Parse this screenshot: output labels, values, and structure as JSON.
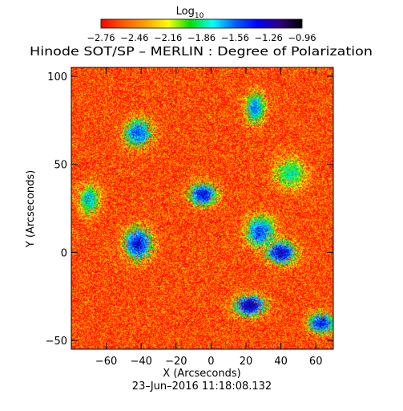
{
  "chart_data": {
    "type": "heatmap",
    "title": "Hinode SOT/SP – MERLIN : Degree of Polarization",
    "xlabel": "X (Arcseconds)",
    "ylabel": "Y (Arcseconds)",
    "timestamp": "23–Jun–2016 11:18:08.132",
    "xlim": [
      -80,
      70
    ],
    "ylim": [
      -55,
      105
    ],
    "xticks": [
      -60,
      -40,
      -20,
      0,
      20,
      40,
      60
    ],
    "yticks": [
      -50,
      0,
      50,
      100
    ],
    "xtick_labels": [
      "−60",
      "−40",
      "−20",
      "0",
      "20",
      "40",
      "60"
    ],
    "ytick_labels": [
      "−50",
      "0",
      "50",
      "100"
    ],
    "grid": false,
    "colorbar": {
      "title": "Log",
      "title_subscript": "10",
      "range": [
        -2.76,
        -0.96
      ],
      "ticks": [
        -2.76,
        -2.46,
        -2.16,
        -1.86,
        -1.56,
        -1.26,
        -0.96
      ],
      "tick_labels": [
        "−2.76",
        "−2.46",
        "−2.16",
        "−1.86",
        "−1.56",
        "−1.26",
        "−0.96"
      ],
      "colors": [
        "#ff0000",
        "#ff5a00",
        "#ffa000",
        "#ffff00",
        "#00e000",
        "#00ffff",
        "#0060ff",
        "#0000ff",
        "#300080",
        "#000000"
      ]
    },
    "background_level": -2.6,
    "regions": [
      {
        "name": "ring-patch",
        "x": -5,
        "y": 33,
        "level": -1.35
      },
      {
        "name": "left-cluster",
        "x": -42,
        "y": 5,
        "level": -1.35
      },
      {
        "name": "upper-left-streak",
        "x": -42,
        "y": 68,
        "level": -1.5
      },
      {
        "name": "top-right-streak",
        "x": 25,
        "y": 82,
        "level": -1.6
      },
      {
        "name": "right-mid-network",
        "x": 28,
        "y": 12,
        "level": -1.5
      },
      {
        "name": "right-vertical-chain",
        "x": 40,
        "y": 0,
        "level": -1.3
      },
      {
        "name": "bottom-right-band",
        "x": 22,
        "y": -30,
        "level": -1.2
      },
      {
        "name": "bottom-right-corner",
        "x": 63,
        "y": -40,
        "level": -1.4
      },
      {
        "name": "left-edge-patch",
        "x": -70,
        "y": 30,
        "level": -1.7
      },
      {
        "name": "mid-right-upper",
        "x": 45,
        "y": 45,
        "level": -1.8
      }
    ]
  }
}
